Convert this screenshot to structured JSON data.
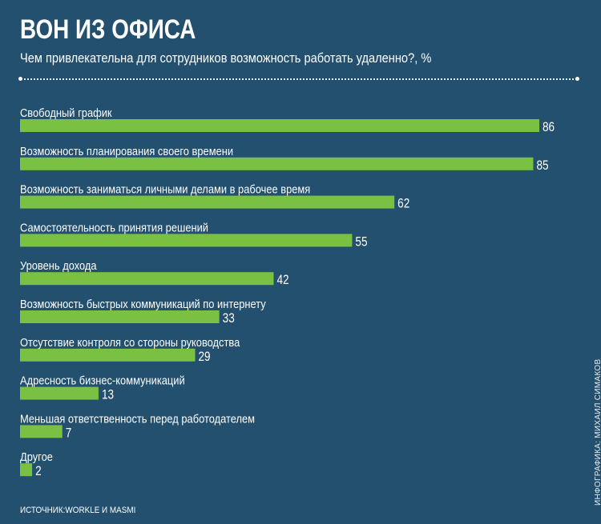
{
  "title": "ВОН ИЗ ОФИСА",
  "subtitle": "Чем привлекательна для сотрудников возможность работать удаленно?, %",
  "source": "ИСТОЧНИК:WORKLE И MASMI",
  "credit": "ИНФОГРАФИКА: МИХАИЛ СИМАКОВ",
  "colors": {
    "background": "#23506e",
    "bar": "#7ac143",
    "text": "#ffffff"
  },
  "chart_data": {
    "type": "bar",
    "orientation": "horizontal",
    "categories": [
      "Свободный график",
      "Возможность планирования своего времени",
      "Возможность заниматься личными делами в рабочее время",
      "Самостоятельность принятия решений",
      "Уровень дохода",
      "Возможность быстрых коммуникаций по интернету",
      "Отсутствие контроля со стороны руководства",
      "Адресность бизнес-коммуникаций",
      "Меньшая ответственность перед работодателем",
      "Другое"
    ],
    "values": [
      86,
      85,
      62,
      55,
      42,
      33,
      29,
      13,
      7,
      2
    ],
    "data_labels": [
      "86",
      "85",
      "62",
      "55",
      "42",
      "33",
      "29",
      "13",
      "7",
      "2"
    ],
    "title": "ВОН ИЗ ОФИСА",
    "xlabel": "",
    "ylabel": "",
    "xlim": [
      0,
      86
    ],
    "grid": false
  }
}
